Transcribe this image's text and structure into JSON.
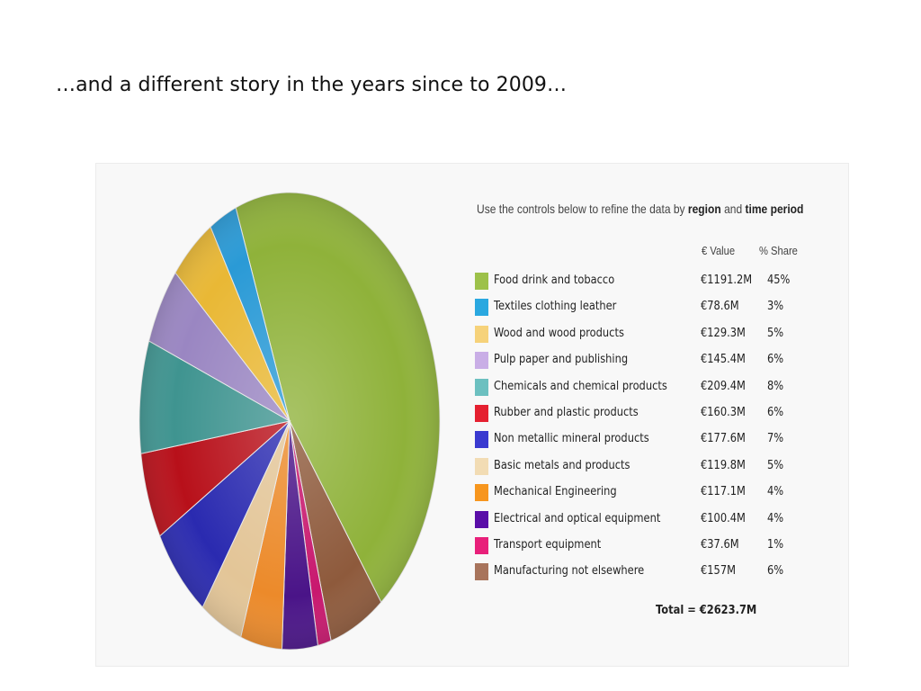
{
  "slide": {
    "title": "…and a different story in the years since to 2009…"
  },
  "panel": {
    "instruction_prefix": "Use the controls below to refine the data by ",
    "instruction_region": "region",
    "instruction_and": " and ",
    "instruction_period": "time period",
    "col_value": "€ Value",
    "col_share": "% Share",
    "total": "Total = €2623.7M"
  },
  "chart_data": {
    "type": "pie",
    "title": "",
    "start_angle_deg": -21,
    "direction": "clockwise",
    "total_value": 2623.7,
    "total_label": "Total = €2623.7M",
    "categories": [
      "Food drink and tobacco",
      "Manufacturing not elsewhere",
      "Transport equipment",
      "Electrical and optical equipment",
      "Mechanical Engineering",
      "Basic metals and products",
      "Non metallic mineral products",
      "Rubber and plastic products",
      "Chemicals and chemical products",
      "Pulp paper and publishing",
      "Wood and wood products",
      "Textiles clothing leather"
    ],
    "values": [
      1191.2,
      157,
      37.6,
      100.4,
      117.1,
      119.8,
      177.6,
      160.3,
      209.4,
      145.4,
      129.3,
      78.6
    ],
    "slice_colors": [
      "#8fb23a",
      "#8e5a3c",
      "#c8186e",
      "#4a1488",
      "#ec8a2a",
      "#e3c597",
      "#2a2ab0",
      "#b8101a",
      "#3f9490",
      "#9a86c2",
      "#e9b835",
      "#2a9ad6"
    ],
    "legend": [
      {
        "label": "Food drink and tobacco",
        "value": "€1191.2M",
        "share": "45%",
        "color": "#9dc14a"
      },
      {
        "label": "Textiles clothing leather",
        "value": "€78.6M",
        "share": "3%",
        "color": "#2aa8e0"
      },
      {
        "label": "Wood and wood products",
        "value": "€129.3M",
        "share": "5%",
        "color": "#f6d27a"
      },
      {
        "label": "Pulp paper and publishing",
        "value": "€145.4M",
        "share": "6%",
        "color": "#c9aee6"
      },
      {
        "label": "Chemicals and chemical products",
        "value": "€209.4M",
        "share": "8%",
        "color": "#6cc0c0"
      },
      {
        "label": "Rubber and plastic products",
        "value": "€160.3M",
        "share": "6%",
        "color": "#e52030"
      },
      {
        "label": "Non metallic mineral products",
        "value": "€177.6M",
        "share": "7%",
        "color": "#3a3ad0"
      },
      {
        "label": "Basic metals and products",
        "value": "€119.8M",
        "share": "5%",
        "color": "#f2dcb4"
      },
      {
        "label": "Mechanical Engineering",
        "value": "€117.1M",
        "share": "4%",
        "color": "#f7961e"
      },
      {
        "label": "Electrical and optical equipment",
        "value": "€100.4M",
        "share": "4%",
        "color": "#5a0ea8"
      },
      {
        "label": "Transport equipment",
        "value": "€37.6M",
        "share": "1%",
        "color": "#e8207a"
      },
      {
        "label": "Manufacturing not elsewhere",
        "value": "€157M",
        "share": "6%",
        "color": "#a8745c"
      }
    ]
  }
}
